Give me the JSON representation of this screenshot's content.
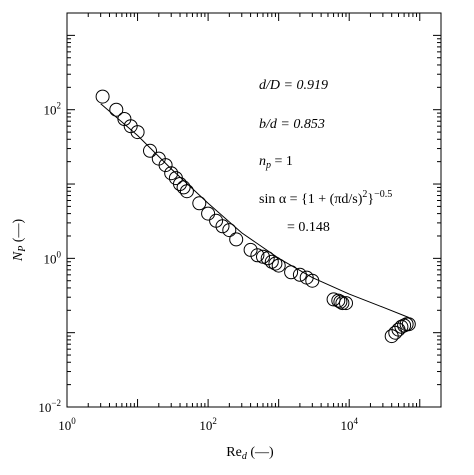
{
  "chart_data": {
    "type": "scatter",
    "x_scale": "log",
    "y_scale": "log",
    "xlim": [
      1,
      200000
    ],
    "ylim": [
      0.01,
      2000
    ],
    "xlabel_main": "Re",
    "xlabel_sub": "d",
    "xlabel_tail": " (—)",
    "ylabel_main": "N",
    "ylabel_sub": "P",
    "ylabel_tail": " (—)",
    "grid": false,
    "x_ticks": [
      {
        "value": 1,
        "base": "10",
        "exp": "0"
      },
      {
        "value": 100,
        "base": "10",
        "exp": "2"
      },
      {
        "value": 10000,
        "base": "10",
        "exp": "4"
      }
    ],
    "y_ticks": [
      {
        "value": 0.01,
        "base": "10",
        "exp": "−2"
      },
      {
        "value": 1,
        "base": "10",
        "exp": "0"
      },
      {
        "value": 100,
        "base": "10",
        "exp": "2"
      }
    ],
    "annotations": {
      "dD": "d/D = 0.919",
      "bd": "b/d = 0.853",
      "np": "n",
      "np_sub": "p",
      "np_val": " = 1",
      "sin_a": "sin α = {1 + (πd/s)",
      "sin_b": "2",
      "sin_c": "}",
      "sin_d": "−0.5",
      "sin_val": "= 0.148"
    },
    "series": [
      {
        "marker": "open-circle",
        "x": [
          3.2,
          5,
          6.5,
          8,
          10,
          15,
          20,
          25,
          30,
          35,
          40,
          45,
          50,
          75,
          100,
          130,
          160,
          200,
          250,
          400,
          500,
          600,
          700,
          800,
          900,
          1000,
          1500,
          2000,
          2500,
          3000,
          6000,
          7000,
          7500,
          8000,
          9000,
          40000,
          45000,
          50000,
          55000,
          60000,
          65000,
          70000
        ],
        "y": [
          150,
          100,
          75,
          60,
          50,
          28,
          22,
          18,
          14,
          12,
          10,
          9,
          8,
          5.5,
          4,
          3.2,
          2.7,
          2.4,
          1.8,
          1.3,
          1.1,
          1.05,
          1.0,
          0.9,
          0.85,
          0.8,
          0.65,
          0.6,
          0.55,
          0.5,
          0.28,
          0.27,
          0.26,
          0.25,
          0.25,
          0.09,
          0.1,
          0.11,
          0.12,
          0.125,
          0.13,
          0.13
        ]
      }
    ],
    "fit_line": {
      "x": [
        3,
        10,
        30,
        100,
        300,
        1000,
        3000,
        10000,
        30000,
        70000
      ],
      "y": [
        120,
        45,
        16,
        5.5,
        2.2,
        1.0,
        0.55,
        0.33,
        0.22,
        0.16
      ]
    }
  }
}
